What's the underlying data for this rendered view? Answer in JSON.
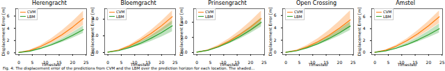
{
  "chart_data": [
    {
      "type": "line",
      "title": "Herengracht",
      "x_label": "Timestep",
      "y_label": "Displacement Error [m]",
      "x": [
        0,
        4,
        8,
        12,
        16,
        20,
        24
      ],
      "xlim": [
        -1.2,
        25.2
      ],
      "xticks": [
        0,
        5,
        10,
        15,
        20,
        25
      ],
      "ylim": [
        -0.3,
        7.2
      ],
      "yticks": [
        0,
        2,
        4,
        6
      ],
      "legend": "upper left",
      "series": [
        {
          "name": "CVM",
          "color": "#ff7f0e",
          "values": [
            0.05,
            0.37,
            1.0,
            1.88,
            2.95,
            4.2,
            5.6
          ],
          "lower": [
            0.05,
            0.3,
            0.82,
            1.52,
            2.38,
            3.37,
            4.5
          ],
          "upper": [
            0.05,
            0.43,
            1.21,
            2.28,
            3.58,
            5.09,
            6.8
          ]
        },
        {
          "name": "LBM",
          "color": "#2ca02c",
          "values": [
            0.05,
            0.26,
            0.7,
            1.29,
            2.01,
            2.85,
            3.8
          ],
          "lower": [
            0.05,
            0.23,
            0.59,
            1.09,
            1.7,
            2.4,
            3.2
          ],
          "upper": [
            0.05,
            0.3,
            0.8,
            1.49,
            2.32,
            3.3,
            4.4
          ]
        }
      ]
    },
    {
      "type": "line",
      "title": "Bloemgracht",
      "x_label": "Timestep",
      "y_label": "Displacement Error [m]",
      "x": [
        0,
        4,
        8,
        12,
        16,
        20,
        24
      ],
      "xlim": [
        -1.2,
        25.2
      ],
      "xticks": [
        0,
        5,
        10,
        15,
        20,
        25
      ],
      "ylim": [
        -0.25,
        5.25
      ],
      "yticks": [
        0,
        2,
        4
      ],
      "legend": "upper left",
      "series": [
        {
          "name": "CVM",
          "color": "#ff7f0e",
          "values": [
            0.05,
            0.29,
            0.78,
            1.45,
            2.27,
            3.22,
            4.3
          ],
          "lower": [
            0.05,
            0.24,
            0.63,
            1.16,
            1.8,
            2.55,
            3.4
          ],
          "upper": [
            0.05,
            0.33,
            0.9,
            1.68,
            2.64,
            3.75,
            5.0
          ]
        },
        {
          "name": "LBM",
          "color": "#2ca02c",
          "values": [
            0.05,
            0.23,
            0.59,
            1.09,
            1.7,
            2.4,
            3.2
          ],
          "lower": [
            0.05,
            0.19,
            0.47,
            0.86,
            1.33,
            1.88,
            2.5
          ],
          "upper": [
            0.05,
            0.26,
            0.7,
            1.29,
            2.01,
            2.85,
            3.8
          ]
        }
      ]
    },
    {
      "type": "line",
      "title": "Prinsengracht",
      "x_label": "Timestep",
      "y_label": "Displacement Error [m]",
      "x": [
        0,
        4,
        8,
        12,
        16,
        20,
        24
      ],
      "xlim": [
        -1.2,
        25.2
      ],
      "xticks": [
        0,
        5,
        10,
        15,
        20,
        25
      ],
      "ylim": [
        -0.28,
        5.8
      ],
      "yticks": [
        0,
        2,
        4
      ],
      "legend": "upper left",
      "series": [
        {
          "name": "CVM",
          "color": "#ff7f0e",
          "values": [
            0.05,
            0.3,
            0.82,
            1.52,
            2.38,
            3.37,
            4.5
          ],
          "lower": [
            0.05,
            0.26,
            0.68,
            1.25,
            1.96,
            2.78,
            3.7
          ],
          "upper": [
            0.05,
            0.36,
            0.99,
            1.85,
            2.9,
            4.12,
            5.5
          ]
        },
        {
          "name": "LBM",
          "color": "#2ca02c",
          "values": [
            0.05,
            0.28,
            0.73,
            1.35,
            2.12,
            3.0,
            4.0
          ],
          "lower": [
            0.05,
            0.24,
            0.63,
            1.16,
            1.8,
            2.55,
            3.4
          ],
          "upper": [
            0.05,
            0.31,
            0.83,
            1.55,
            2.43,
            3.45,
            4.6
          ]
        }
      ]
    },
    {
      "type": "line",
      "title": "Open Crossing",
      "x_label": "Timestep",
      "y_label": "Displacement Error [m]",
      "x": [
        0,
        4,
        8,
        12,
        16,
        20,
        24
      ],
      "xlim": [
        -1.2,
        25.2
      ],
      "xticks": [
        0,
        5,
        10,
        15,
        20,
        25
      ],
      "ylim": [
        -0.33,
        7.1
      ],
      "yticks": [
        0,
        2,
        4,
        6
      ],
      "legend": "upper left",
      "series": [
        {
          "name": "CVM",
          "color": "#ff7f0e",
          "values": [
            0.05,
            0.35,
            0.95,
            1.78,
            2.8,
            3.97,
            5.3
          ],
          "lower": [
            0.05,
            0.29,
            0.78,
            1.45,
            2.27,
            3.22,
            4.3
          ],
          "upper": [
            0.05,
            0.43,
            1.21,
            2.28,
            3.58,
            5.09,
            6.8
          ]
        },
        {
          "name": "LBM",
          "color": "#2ca02c",
          "values": [
            0.05,
            0.29,
            0.78,
            1.45,
            2.27,
            3.22,
            4.3
          ],
          "lower": [
            0.05,
            0.25,
            0.66,
            1.22,
            1.91,
            2.7,
            3.6
          ],
          "upper": [
            0.05,
            0.33,
            0.9,
            1.68,
            2.64,
            3.75,
            5.0
          ]
        }
      ]
    },
    {
      "type": "line",
      "title": "Amstel",
      "x_label": "Timestep",
      "y_label": "Displacement Error [m]",
      "x": [
        0,
        4,
        8,
        12,
        16,
        20,
        24
      ],
      "xlim": [
        -1.2,
        25.2
      ],
      "xticks": [
        0,
        5,
        10,
        15,
        20,
        25
      ],
      "ylim": [
        -0.35,
        7.35
      ],
      "yticks": [
        0,
        2,
        4,
        6
      ],
      "legend": "upper left",
      "series": [
        {
          "name": "CVM",
          "color": "#ff7f0e",
          "values": [
            0.05,
            0.39,
            1.07,
            2.01,
            3.16,
            4.49,
            6.0
          ],
          "lower": [
            0.05,
            0.33,
            0.88,
            1.65,
            2.59,
            3.67,
            4.9
          ],
          "upper": [
            0.05,
            0.44,
            1.24,
            2.34,
            3.69,
            5.24,
            7.0
          ]
        },
        {
          "name": "LBM",
          "color": "#2ca02c",
          "values": [
            0.05,
            0.28,
            0.73,
            1.35,
            2.12,
            3.0,
            4.0
          ],
          "lower": [
            0.05,
            0.24,
            0.61,
            1.13,
            1.78,
            2.51,
            3.3
          ],
          "upper": [
            0.05,
            0.32,
            0.87,
            1.62,
            2.53,
            3.6,
            4.8
          ]
        }
      ]
    }
  ],
  "caption": "Fig. 4: The displacement error of the predictions from CVM and the LBM over the prediction horizon for each location. The shaded..."
}
